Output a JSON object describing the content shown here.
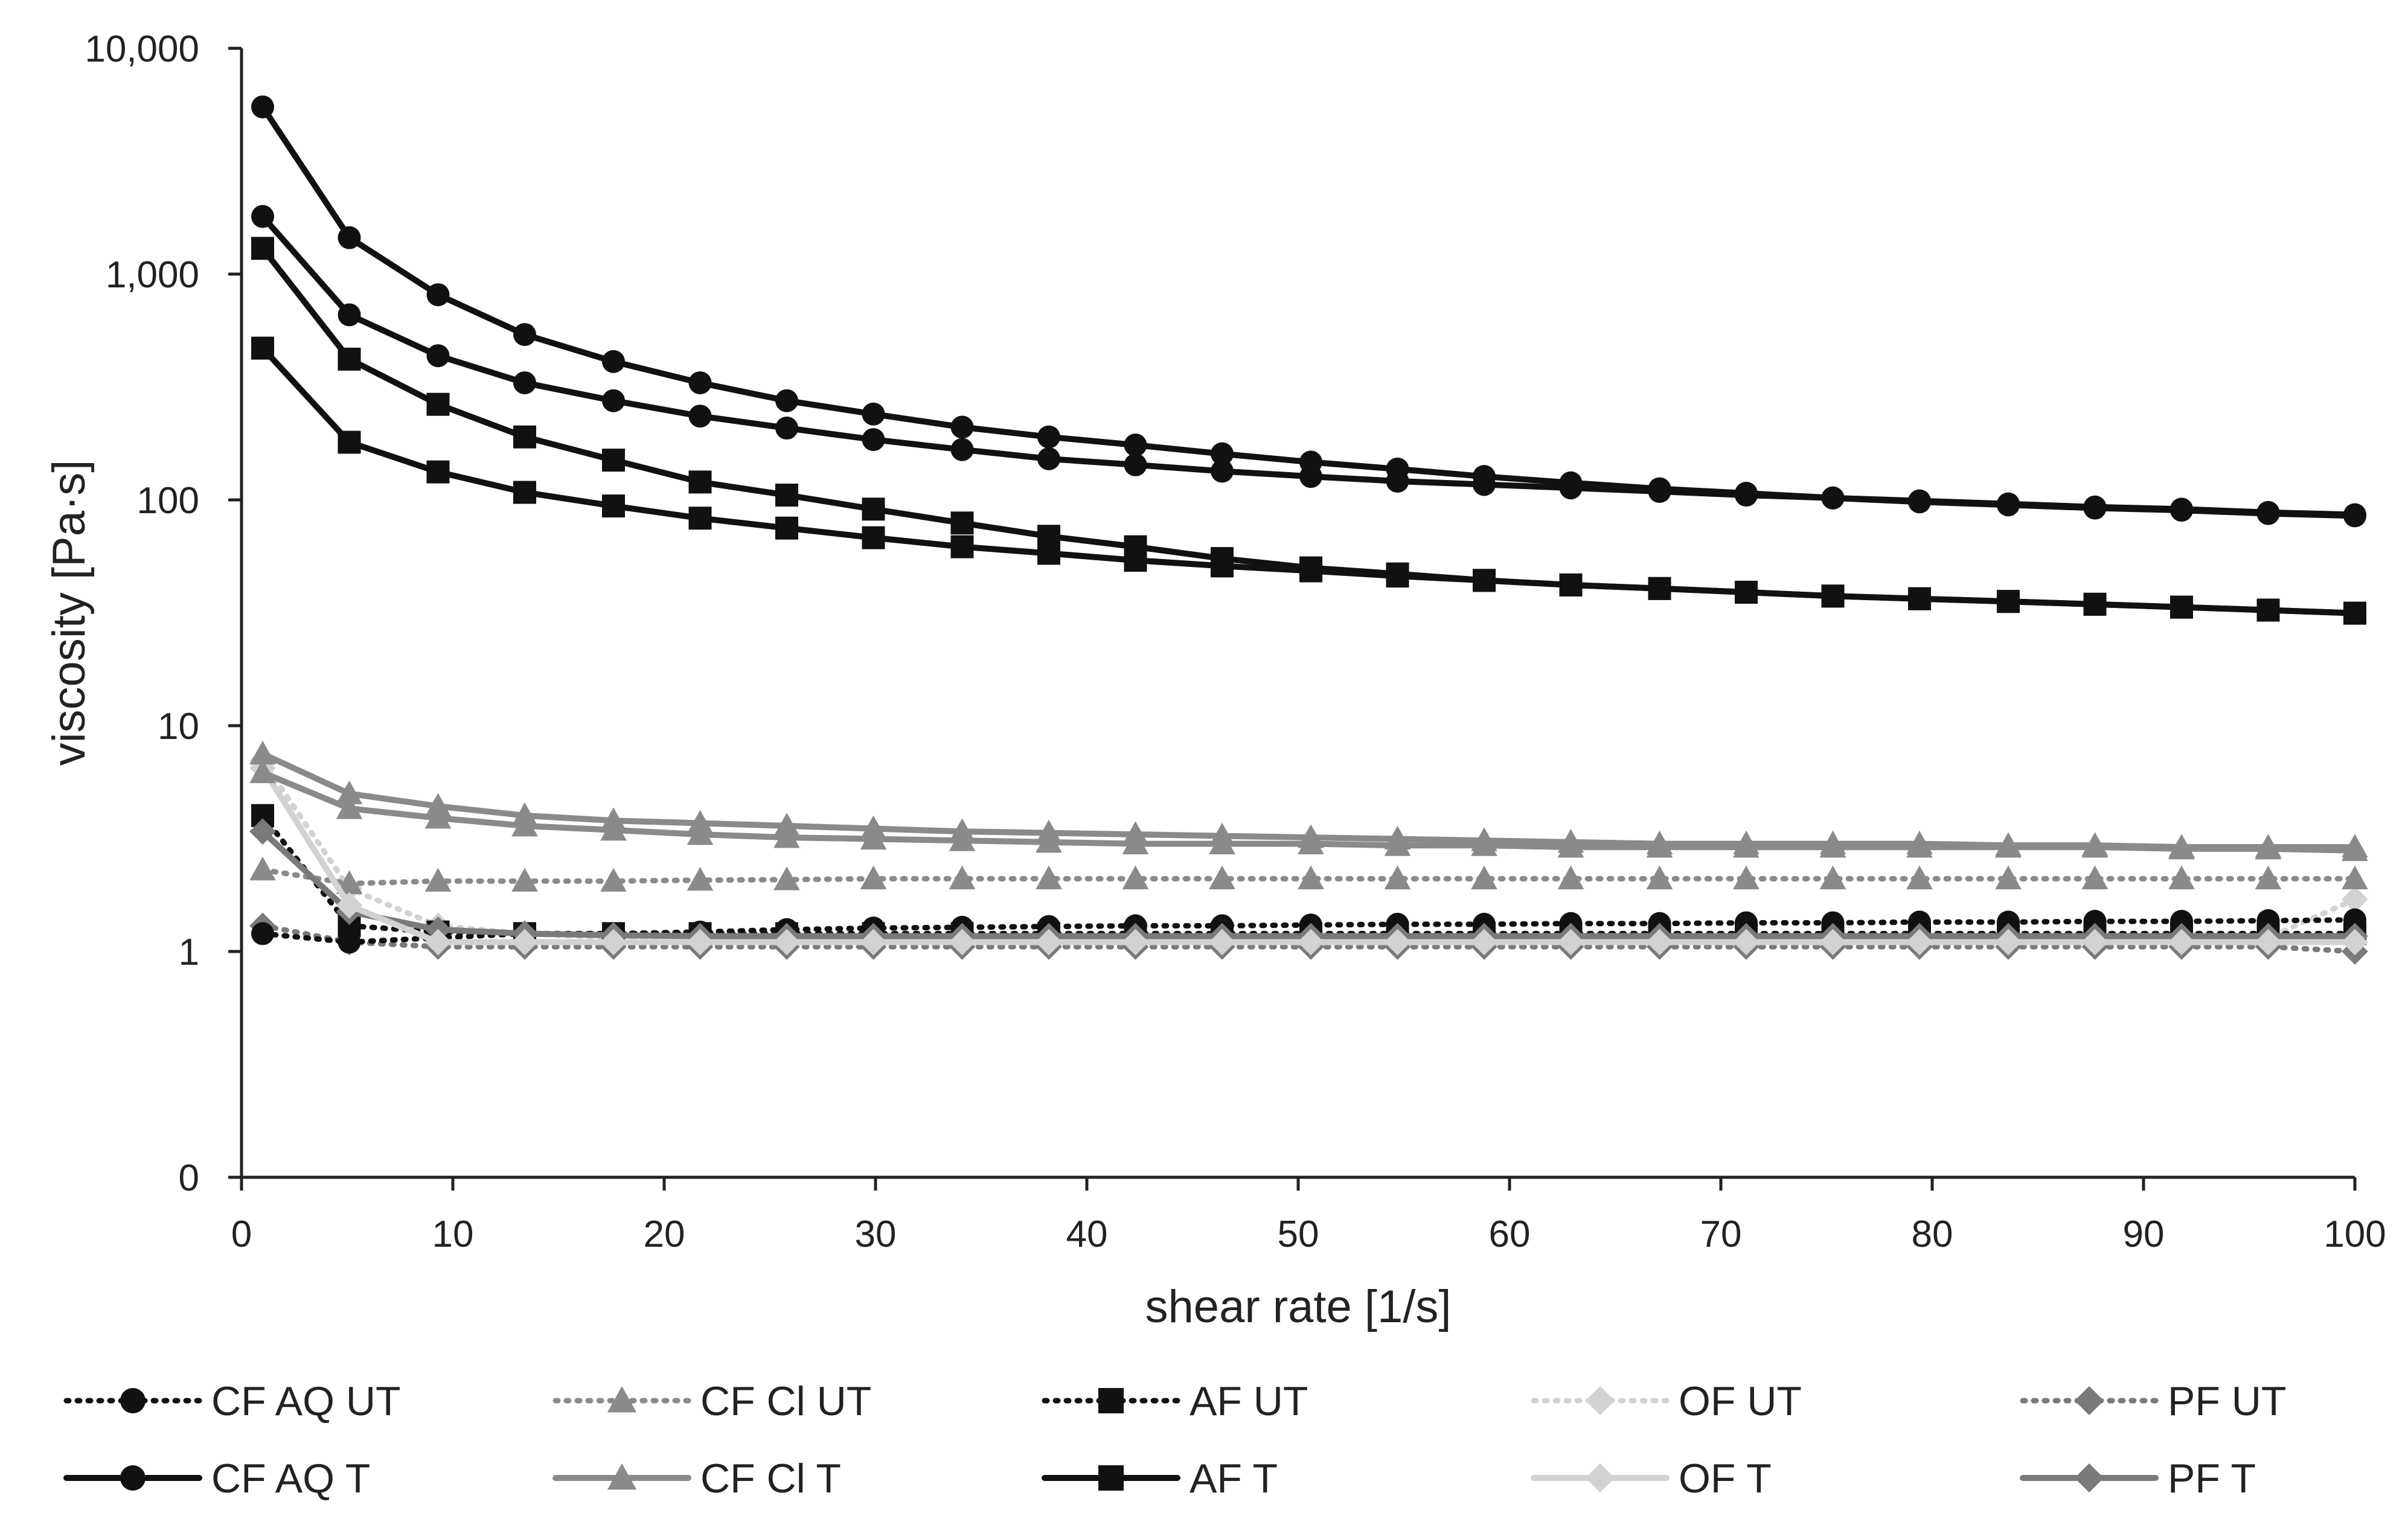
{
  "chart_data": {
    "type": "line",
    "title": "",
    "xlabel": "shear rate [1/s]",
    "ylabel": "viscosity [Pa·s]",
    "xlim": [
      0,
      100
    ],
    "ylim": [
      0.1,
      10000
    ],
    "y_scale": "log",
    "x_ticks": [
      "0",
      "10",
      "20",
      "30",
      "40",
      "50",
      "60",
      "70",
      "80",
      "90",
      "100"
    ],
    "y_ticks": [
      {
        "value": 10000,
        "label": "10,000"
      },
      {
        "value": 1000,
        "label": "1,000"
      },
      {
        "value": 100,
        "label": "100"
      },
      {
        "value": 10,
        "label": "10"
      },
      {
        "value": 1,
        "label": "1"
      },
      {
        "value": 0.1,
        "label": "0"
      }
    ],
    "x": [
      1,
      5.1,
      9.3,
      13.4,
      17.6,
      21.7,
      25.8,
      29.9,
      34.1,
      38.2,
      42.3,
      46.4,
      50.6,
      54.7,
      58.8,
      62.9,
      67.1,
      71.2,
      75.3,
      79.4,
      83.6,
      87.7,
      91.8,
      95.9,
      100
    ],
    "series": [
      {
        "name": "CF AQ UT",
        "color": "#111111",
        "dash": "dotted",
        "marker": "circle",
        "values": [
          1.2,
          1.1,
          1.15,
          1.2,
          1.2,
          1.22,
          1.25,
          1.27,
          1.28,
          1.29,
          1.3,
          1.3,
          1.31,
          1.32,
          1.32,
          1.33,
          1.33,
          1.34,
          1.34,
          1.35,
          1.35,
          1.36,
          1.36,
          1.37,
          1.38
        ]
      },
      {
        "name": "CF Cl UT",
        "color": "#8a8a8a",
        "dash": "dotted",
        "marker": "triangle",
        "values": [
          2.3,
          2.0,
          2.05,
          2.05,
          2.05,
          2.07,
          2.08,
          2.1,
          2.1,
          2.1,
          2.1,
          2.1,
          2.1,
          2.1,
          2.1,
          2.1,
          2.1,
          2.1,
          2.1,
          2.1,
          2.1,
          2.1,
          2.1,
          2.1,
          2.1
        ]
      },
      {
        "name": "AF UT",
        "color": "#111111",
        "dash": "dotted",
        "marker": "square",
        "values": [
          4.0,
          1.3,
          1.22,
          1.2,
          1.2,
          1.2,
          1.2,
          1.2,
          1.2,
          1.2,
          1.2,
          1.2,
          1.2,
          1.2,
          1.2,
          1.2,
          1.2,
          1.2,
          1.2,
          1.2,
          1.2,
          1.2,
          1.2,
          1.2,
          1.2
        ]
      },
      {
        "name": "OF UT",
        "color": "#d2d2d2",
        "dash": "dotted",
        "marker": "diamond",
        "values": [
          7.0,
          1.9,
          1.3,
          1.2,
          1.15,
          1.15,
          1.15,
          1.15,
          1.15,
          1.15,
          1.15,
          1.15,
          1.15,
          1.15,
          1.15,
          1.15,
          1.15,
          1.15,
          1.15,
          1.15,
          1.15,
          1.15,
          1.15,
          1.15,
          1.7
        ]
      },
      {
        "name": "PF UT",
        "color": "#7a7a7a",
        "dash": "dotted",
        "marker": "diamond",
        "values": [
          1.3,
          1.1,
          1.05,
          1.05,
          1.05,
          1.05,
          1.05,
          1.05,
          1.05,
          1.05,
          1.05,
          1.05,
          1.05,
          1.05,
          1.05,
          1.05,
          1.05,
          1.05,
          1.05,
          1.05,
          1.05,
          1.05,
          1.05,
          1.05,
          1.0
        ]
      },
      {
        "name": "CF AQ T",
        "color": "#111111",
        "dash": "solid",
        "marker": "circle",
        "values": [
          5500,
          1450,
          810,
          540,
          410,
          330,
          275,
          240,
          210,
          190,
          175,
          160,
          147,
          137,
          127,
          119,
          112,
          107,
          102,
          98,
          95,
          92,
          90,
          87,
          85
        ]
      },
      {
        "name": "CF Cl T",
        "color": "#8a8a8a",
        "dash": "solid",
        "marker": "triangle",
        "values": [
          7.5,
          5.0,
          4.4,
          4.0,
          3.8,
          3.7,
          3.6,
          3.5,
          3.4,
          3.35,
          3.3,
          3.25,
          3.2,
          3.15,
          3.1,
          3.05,
          3.0,
          3.0,
          3.0,
          3.0,
          2.95,
          2.95,
          2.9,
          2.9,
          2.9
        ]
      },
      {
        "name": "AF T",
        "color": "#111111",
        "dash": "solid",
        "marker": "square",
        "values": [
          470,
          180,
          133,
          108,
          94,
          83,
          75,
          68,
          62,
          58,
          54,
          51,
          48.5,
          46,
          44,
          42,
          40.5,
          39,
          37.5,
          36.5,
          35.5,
          34.5,
          33.5,
          32.5,
          31.5
        ]
      },
      {
        "name": "OF T",
        "color": "#d2d2d2",
        "dash": "solid",
        "marker": "diamond",
        "values": [
          6.5,
          1.6,
          1.1,
          1.1,
          1.1,
          1.1,
          1.1,
          1.1,
          1.1,
          1.1,
          1.1,
          1.1,
          1.1,
          1.1,
          1.1,
          1.1,
          1.1,
          1.1,
          1.1,
          1.1,
          1.1,
          1.1,
          1.1,
          1.1,
          1.1
        ]
      },
      {
        "name": "PF T",
        "color": "#7a7a7a",
        "dash": "solid",
        "marker": "diamond",
        "values": [
          3.4,
          1.5,
          1.25,
          1.2,
          1.18,
          1.17,
          1.17,
          1.17,
          1.17,
          1.17,
          1.17,
          1.17,
          1.17,
          1.17,
          1.17,
          1.17,
          1.17,
          1.17,
          1.17,
          1.17,
          1.17,
          1.17,
          1.17,
          1.17,
          1.17
        ]
      },
      {
        "name": "",
        "color": "#111111",
        "dash": "solid",
        "marker": "circle",
        "in_legend": false,
        "values": [
          1800,
          660,
          435,
          330,
          275,
          235,
          208,
          185,
          167,
          152,
          143,
          134,
          127,
          121,
          117,
          113,
          109,
          105,
          102,
          99,
          96,
          93,
          91,
          88,
          86
        ]
      },
      {
        "name": "",
        "color": "#111111",
        "dash": "solid",
        "marker": "square",
        "in_legend": false,
        "values": [
          1300,
          420,
          265,
          190,
          150,
          120,
          105,
          91,
          79,
          69,
          62,
          55,
          50,
          47,
          44,
          42,
          40.5,
          39,
          37.5,
          36.5,
          35.5,
          34.5,
          33.5,
          32.5,
          31.5
        ]
      },
      {
        "name": "",
        "color": "#8a8a8a",
        "dash": "solid",
        "marker": "triangle",
        "in_legend": false,
        "values": [
          6.2,
          4.3,
          3.9,
          3.6,
          3.45,
          3.3,
          3.2,
          3.15,
          3.1,
          3.05,
          3.0,
          3.0,
          3.0,
          2.95,
          2.95,
          2.9,
          2.9,
          2.9,
          2.9,
          2.9,
          2.9,
          2.9,
          2.85,
          2.85,
          2.8
        ]
      }
    ]
  }
}
